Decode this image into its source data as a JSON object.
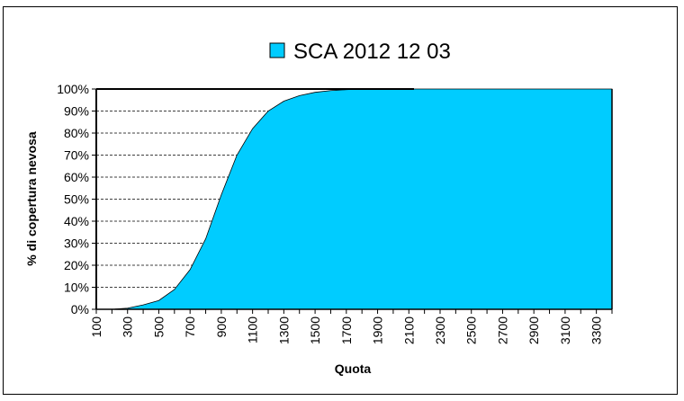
{
  "chart_data": {
    "type": "area",
    "title": "",
    "xlabel": "Quota",
    "ylabel": "% di copertura nevosa",
    "xlim": [
      100,
      3400
    ],
    "ylim": [
      0,
      100
    ],
    "x_tick_labels": [
      "100",
      "300",
      "500",
      "700",
      "900",
      "1100",
      "1300",
      "1500",
      "1700",
      "1900",
      "2100",
      "2300",
      "2500",
      "2700",
      "2900",
      "3100",
      "3300"
    ],
    "y_tick_labels": [
      "0%",
      "10%",
      "20%",
      "30%",
      "40%",
      "50%",
      "60%",
      "70%",
      "80%",
      "90%",
      "100%"
    ],
    "grid": "horizontal dashed",
    "legend_position": "top-center",
    "series": [
      {
        "name": "SCA 2012 12 03",
        "color": "#00ccff",
        "x": [
          100,
          200,
          300,
          400,
          500,
          600,
          700,
          800,
          900,
          1000,
          1100,
          1200,
          1300,
          1400,
          1500,
          1600,
          1700,
          1800,
          1900,
          2000,
          2100,
          2200,
          2300,
          2400,
          2500,
          2600,
          2700,
          2800,
          2900,
          3000,
          3100,
          3200,
          3300,
          3400
        ],
        "values": [
          0,
          0,
          0.5,
          2,
          4,
          9,
          18,
          32,
          52,
          70,
          82,
          90,
          94.5,
          97,
          98.5,
          99.3,
          99.7,
          100,
          100,
          100,
          100,
          100,
          100,
          100,
          100,
          100,
          100,
          100,
          100,
          100,
          100,
          100,
          100,
          100
        ]
      }
    ]
  }
}
